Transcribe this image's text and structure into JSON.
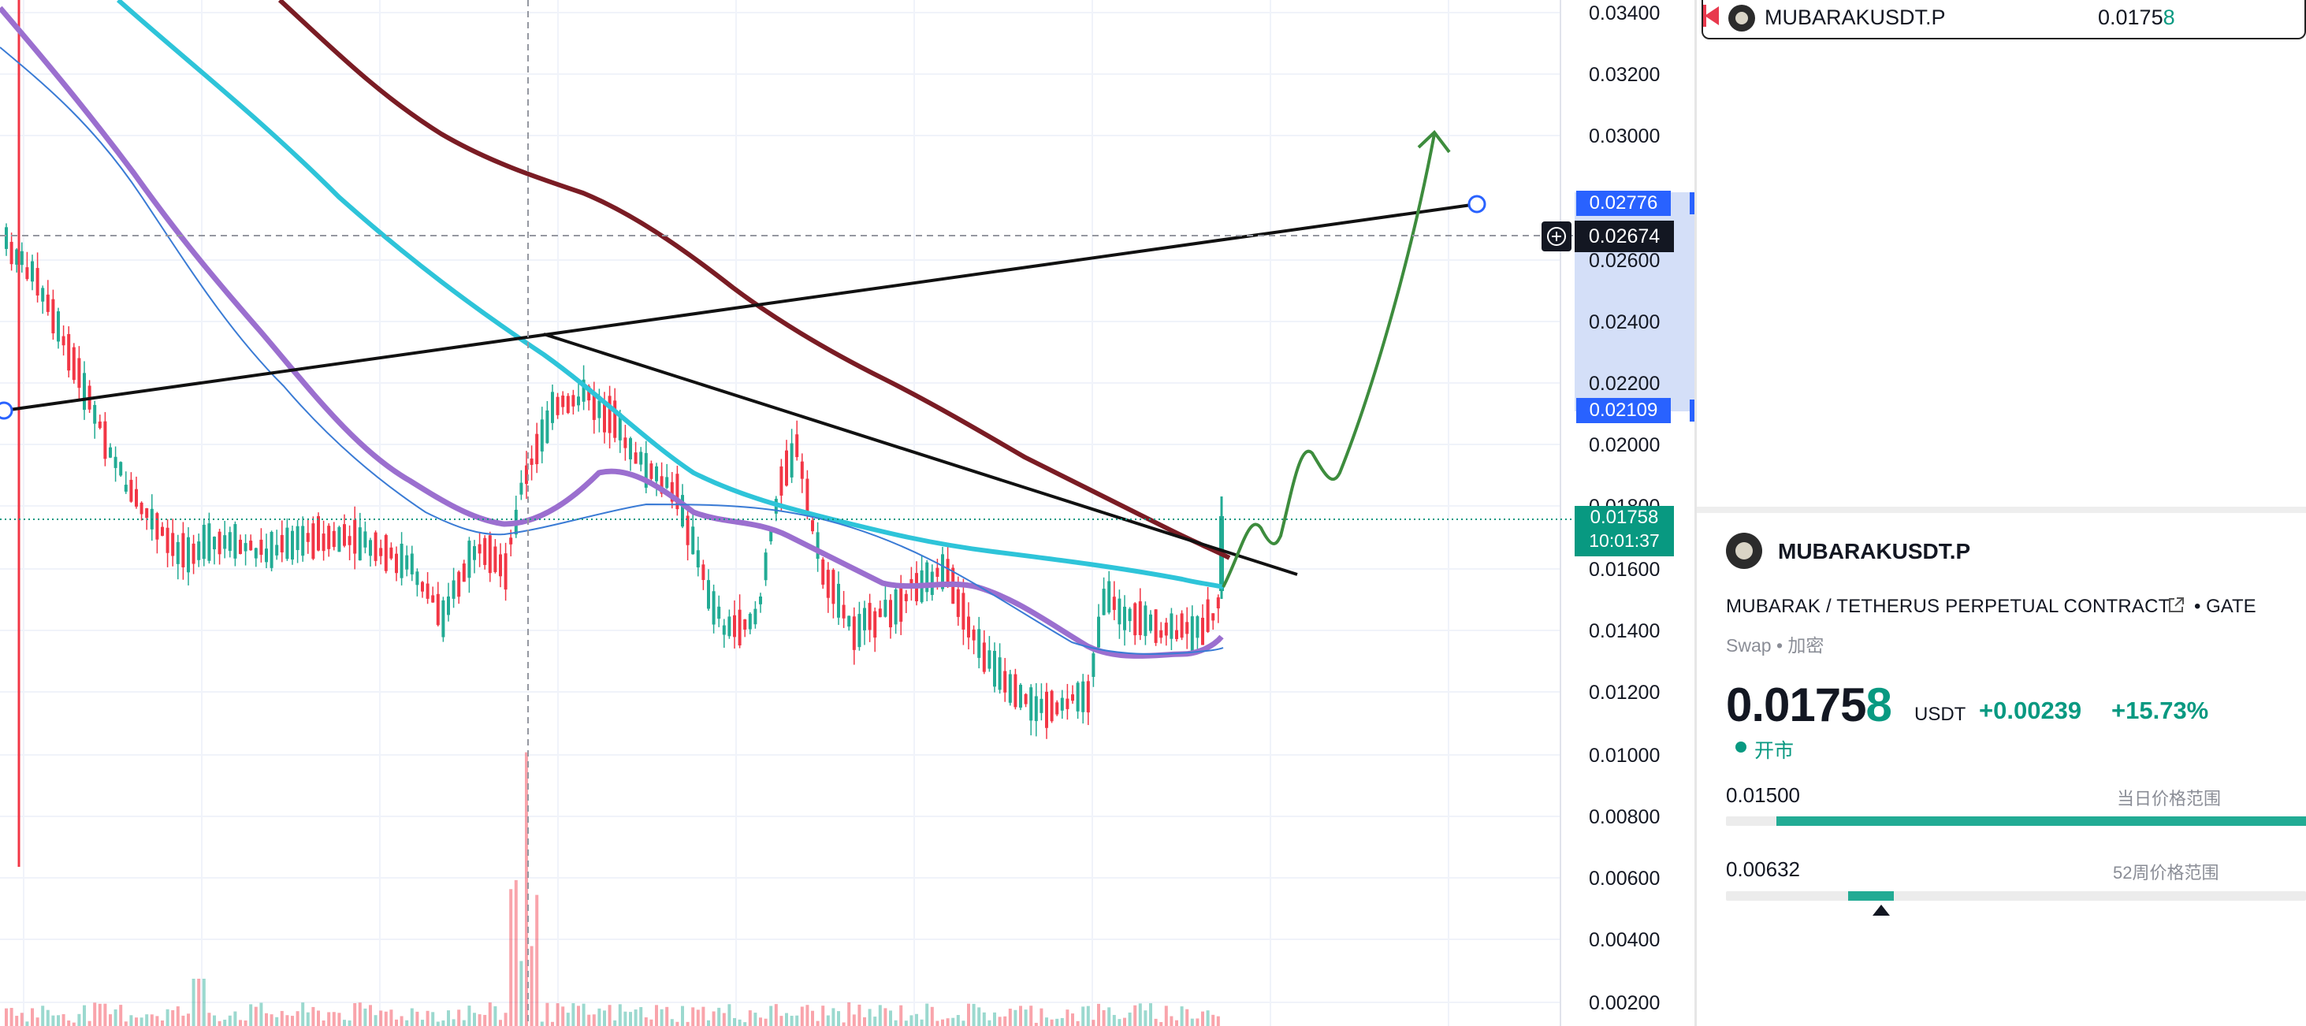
{
  "chart": {
    "price_axis": [
      "0.03400",
      "0.03200",
      "0.03000",
      "0.02600",
      "0.02400",
      "0.02200",
      "0.02000",
      "0.01800",
      "0.01600",
      "0.01400",
      "0.01200",
      "0.01000",
      "0.00800",
      "0.00600",
      "0.00400",
      "0.00200"
    ],
    "range_high_label": "0.02776",
    "range_low_label": "0.02109",
    "crosshair_label": "0.02674",
    "last_price_label": "0.01758",
    "countdown_label": "10:01:37",
    "colors": {
      "ma_fast": "#3a7bd5",
      "ma_mid": "#2ec4d9",
      "ma_slow": "#9b6fcf",
      "ma_long": "#7a1c24",
      "up": "#22ab94",
      "down": "#f23645",
      "projection": "#3d8c3d",
      "range_bg": "#cfdcf7",
      "range_tag": "#2962ff"
    }
  },
  "watchlist": {
    "symbol": "MUBARAKUSDT.P",
    "price_main": "0.0175",
    "price_last_digit": "8",
    "flag_icon": "red-flag-icon"
  },
  "details": {
    "symbol": "MUBARAKUSDT.P",
    "name": "MUBARAK / TETHERUS PERPETUAL CONTRACT",
    "exchange_sep": "•",
    "exchange": "GATE",
    "type_label": "Swap",
    "type_sep": "•",
    "category_label": "加密",
    "price_main": "0.0175",
    "price_last_digit": "8",
    "currency": "USDT",
    "change_abs": "+0.00239",
    "change_pct": "+15.73%",
    "market_status": "开市",
    "day_low": "0.01500",
    "day_range_label": "当日价格范围",
    "week_low": "0.00632",
    "week_range_label": "52周价格范围",
    "day_range_position": 0.91,
    "week_range_position": 0.26
  }
}
